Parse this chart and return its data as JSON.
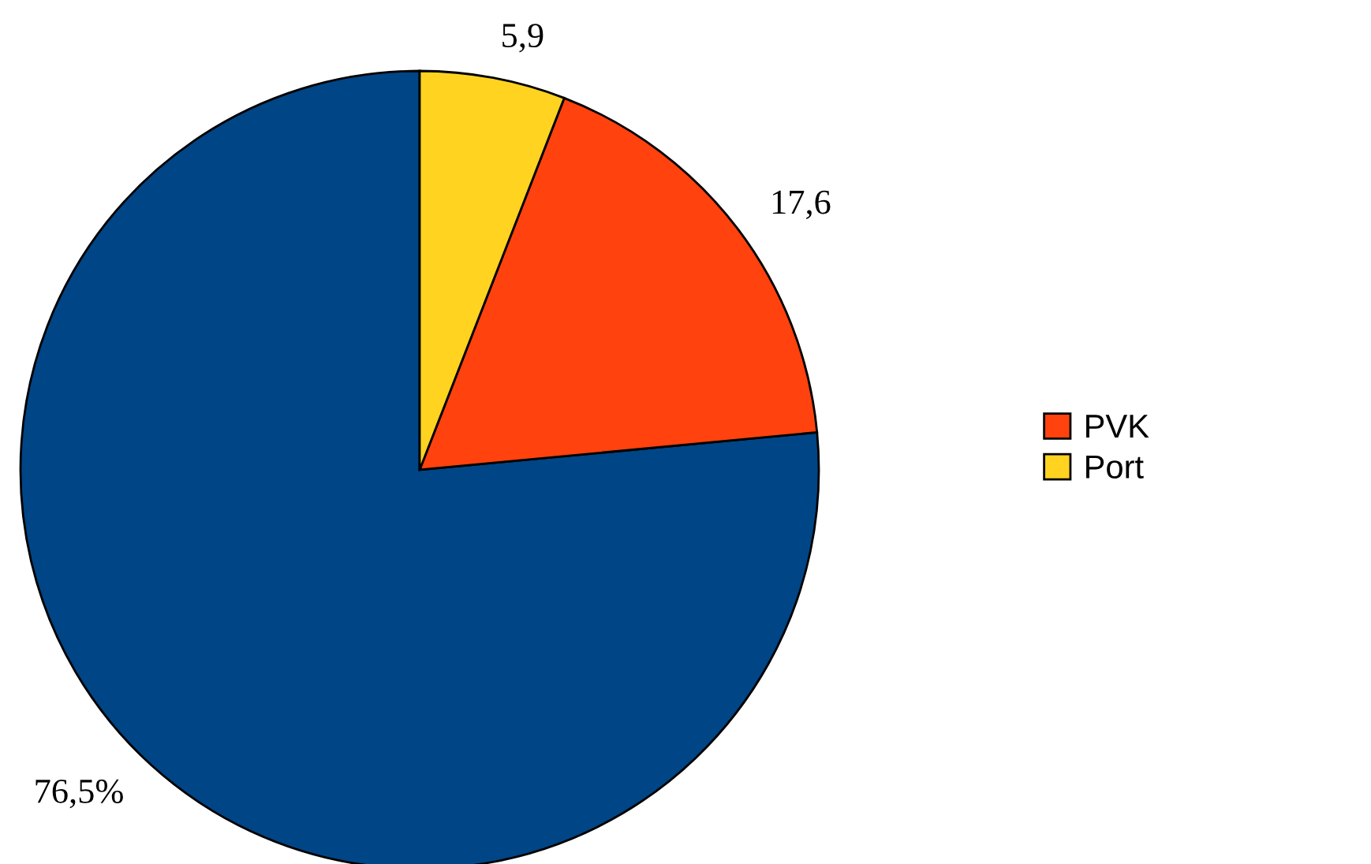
{
  "chart_data": {
    "type": "pie",
    "categories": [
      null,
      "PVK",
      "Port"
    ],
    "values": [
      76.5,
      17.6,
      5.9
    ],
    "colors": [
      "#004586",
      "#ff420e",
      "#ffd320"
    ],
    "value_labels": [
      "76,5%",
      "17,6",
      "5,9"
    ],
    "legend": "right"
  }
}
